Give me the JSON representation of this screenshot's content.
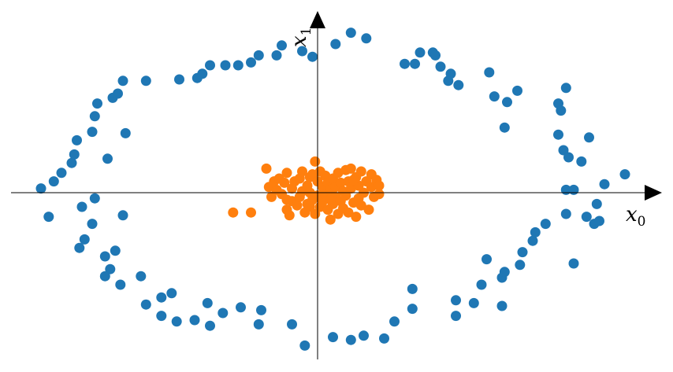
{
  "chart_data": {
    "type": "scatter",
    "title": "",
    "xlabel": {
      "base": "x",
      "sub": "0"
    },
    "ylabel": {
      "base": "x",
      "sub": "1"
    },
    "xlim": [
      -1.2,
      1.3
    ],
    "ylim": [
      -1.25,
      1.35
    ],
    "grid": false,
    "legend": "none",
    "series": [
      {
        "color": "#1f77b4",
        "points": [
          [
            -1.08,
            0.03
          ],
          [
            -1.05,
            -0.17
          ],
          [
            -1.03,
            0.08
          ],
          [
            -1.0,
            0.14
          ],
          [
            -0.96,
            0.21
          ],
          [
            -0.95,
            0.27
          ],
          [
            -0.94,
            0.37
          ],
          [
            -0.93,
            -0.39
          ],
          [
            -0.92,
            -0.1
          ],
          [
            -0.91,
            -0.33
          ],
          [
            -0.88,
            -0.22
          ],
          [
            -0.87,
            -0.04
          ],
          [
            -0.88,
            0.43
          ],
          [
            -0.87,
            0.54
          ],
          [
            -0.86,
            0.63
          ],
          [
            -0.83,
            -0.45
          ],
          [
            -0.81,
            -0.54
          ],
          [
            -0.79,
            -0.41
          ],
          [
            -0.8,
            0.67
          ],
          [
            -0.83,
            -0.59
          ],
          [
            -0.82,
            0.24
          ],
          [
            -0.78,
            0.7
          ],
          [
            -0.76,
            -0.16
          ],
          [
            -0.75,
            0.42
          ],
          [
            -0.76,
            0.79
          ],
          [
            -0.77,
            -0.65
          ],
          [
            -0.69,
            -0.59
          ],
          [
            -0.67,
            -0.79
          ],
          [
            -0.67,
            0.79
          ],
          [
            -0.61,
            -0.74
          ],
          [
            -0.61,
            -0.87
          ],
          [
            -0.57,
            -0.71
          ],
          [
            -0.55,
            -0.91
          ],
          [
            -0.54,
            0.8
          ],
          [
            -0.48,
            -0.9
          ],
          [
            -0.47,
            0.81
          ],
          [
            -0.45,
            0.84
          ],
          [
            -0.43,
            -0.78
          ],
          [
            -0.42,
            -0.94
          ],
          [
            -0.42,
            0.9
          ],
          [
            -0.37,
            -0.85
          ],
          [
            -0.36,
            0.9
          ],
          [
            -0.31,
            0.9
          ],
          [
            -0.3,
            -0.81
          ],
          [
            -0.26,
            0.92
          ],
          [
            -0.23,
            0.97
          ],
          [
            -0.23,
            -0.93
          ],
          [
            -0.22,
            -0.83
          ],
          [
            -0.16,
            0.97
          ],
          [
            -0.14,
            1.04
          ],
          [
            -0.1,
            -0.93
          ],
          [
            -0.06,
            1.0
          ],
          [
            -0.05,
            -1.08
          ],
          [
            -0.02,
            0.96
          ],
          [
            0.06,
            -1.02
          ],
          [
            0.07,
            1.05
          ],
          [
            0.13,
            -1.04
          ],
          [
            0.13,
            1.13
          ],
          [
            0.18,
            -1.01
          ],
          [
            0.19,
            1.09
          ],
          [
            0.26,
            -1.03
          ],
          [
            0.3,
            -0.91
          ],
          [
            0.34,
            0.91
          ],
          [
            0.37,
            -0.82
          ],
          [
            0.37,
            -0.68
          ],
          [
            0.38,
            0.91
          ],
          [
            0.4,
            0.99
          ],
          [
            0.45,
            0.99
          ],
          [
            0.46,
            0.97
          ],
          [
            0.48,
            0.89
          ],
          [
            0.54,
            -0.76
          ],
          [
            0.54,
            -0.87
          ],
          [
            0.51,
            0.79
          ],
          [
            0.52,
            0.84
          ],
          [
            0.55,
            0.76
          ],
          [
            0.61,
            -0.78
          ],
          [
            0.64,
            -0.65
          ],
          [
            0.66,
            -0.47
          ],
          [
            0.67,
            0.85
          ],
          [
            0.69,
            0.68
          ],
          [
            0.72,
            -0.8
          ],
          [
            0.72,
            -0.6
          ],
          [
            0.73,
            0.46
          ],
          [
            0.73,
            -0.56
          ],
          [
            0.74,
            0.64
          ],
          [
            0.78,
            0.72
          ],
          [
            0.79,
            -0.51
          ],
          [
            0.8,
            -0.42
          ],
          [
            0.84,
            -0.34
          ],
          [
            0.85,
            -0.28
          ],
          [
            0.89,
            -0.22
          ],
          [
            0.94,
            0.41
          ],
          [
            0.94,
            0.63
          ],
          [
            0.95,
            0.58
          ],
          [
            0.96,
            0.3
          ],
          [
            0.97,
            0.74
          ],
          [
            0.97,
            0.02
          ],
          [
            0.97,
            -0.15
          ],
          [
            0.98,
            0.25
          ],
          [
            1.0,
            0.02
          ],
          [
            1.03,
            0.22
          ],
          [
            1.05,
            -0.17
          ],
          [
            1.06,
            0.39
          ],
          [
            1.08,
            -0.22
          ],
          [
            1.09,
            -0.08
          ],
          [
            1.1,
            -0.2
          ],
          [
            1.12,
            0.06
          ],
          [
            1.2,
            0.13
          ],
          [
            1.0,
            -0.5
          ]
        ]
      },
      {
        "color": "#ff7f0e",
        "points": [
          [
            -0.33,
            -0.14
          ],
          [
            -0.26,
            -0.14
          ],
          [
            -0.2,
            0.17
          ],
          [
            -0.19,
            0.04
          ],
          [
            -0.18,
            -0.03
          ],
          [
            -0.17,
            0.08
          ],
          [
            -0.16,
            0.02
          ],
          [
            -0.15,
            0.1
          ],
          [
            -0.14,
            -0.01
          ],
          [
            -0.13,
            0.07
          ],
          [
            -0.12,
            -0.12
          ],
          [
            -0.12,
            0.14
          ],
          [
            -0.11,
            -0.16
          ],
          [
            -0.1,
            0.03
          ],
          [
            -0.1,
            -0.06
          ],
          [
            -0.09,
            0.08
          ],
          [
            -0.08,
            -0.09
          ],
          [
            -0.07,
            0.1
          ],
          [
            -0.07,
            -0.03
          ],
          [
            -0.06,
            0.15
          ],
          [
            -0.06,
            0.01
          ],
          [
            -0.05,
            -0.14
          ],
          [
            -0.04,
            0.05
          ],
          [
            -0.04,
            -0.08
          ],
          [
            -0.03,
            0.11
          ],
          [
            -0.03,
            0.0
          ],
          [
            -0.02,
            0.13
          ],
          [
            -0.02,
            -0.05
          ],
          [
            -0.01,
            0.22
          ],
          [
            -0.01,
            -0.15
          ],
          [
            0.0,
            0.08
          ],
          [
            0.0,
            -0.02
          ],
          [
            0.01,
            0.15
          ],
          [
            0.01,
            -0.1
          ],
          [
            0.02,
            0.04
          ],
          [
            0.02,
            -0.06
          ],
          [
            0.03,
            0.12
          ],
          [
            0.03,
            -0.01
          ],
          [
            0.04,
            0.07
          ],
          [
            0.04,
            -0.12
          ],
          [
            0.05,
            -0.19
          ],
          [
            0.05,
            0.02
          ],
          [
            0.06,
            0.1
          ],
          [
            0.06,
            -0.08
          ],
          [
            0.07,
            0.04
          ],
          [
            0.07,
            -0.03
          ],
          [
            0.08,
            0.14
          ],
          [
            0.08,
            -0.15
          ],
          [
            0.09,
            0.07
          ],
          [
            0.09,
            -0.06
          ],
          [
            0.1,
            0.01
          ],
          [
            0.1,
            -0.11
          ],
          [
            0.11,
            0.16
          ],
          [
            0.11,
            -0.02
          ],
          [
            0.12,
            0.08
          ],
          [
            0.12,
            -0.14
          ],
          [
            0.13,
            0.17
          ],
          [
            0.13,
            0.03
          ],
          [
            0.14,
            -0.07
          ],
          [
            0.15,
            0.11
          ],
          [
            0.15,
            -0.17
          ],
          [
            0.16,
            0.05
          ],
          [
            0.16,
            -0.04
          ],
          [
            0.17,
            0.15
          ],
          [
            0.17,
            -0.09
          ],
          [
            0.18,
            0.0
          ],
          [
            0.19,
            0.08
          ],
          [
            0.2,
            -0.12
          ],
          [
            0.21,
            0.04
          ],
          [
            0.21,
            0.13
          ],
          [
            0.22,
            -0.03
          ],
          [
            0.23,
            0.09
          ],
          [
            0.24,
            0.05
          ],
          [
            0.24,
            -0.01
          ],
          [
            0.05,
            -0.05
          ],
          [
            -0.12,
            -0.05
          ],
          [
            -0.03,
            -0.1
          ],
          [
            0.14,
            0.09
          ]
        ]
      }
    ]
  }
}
